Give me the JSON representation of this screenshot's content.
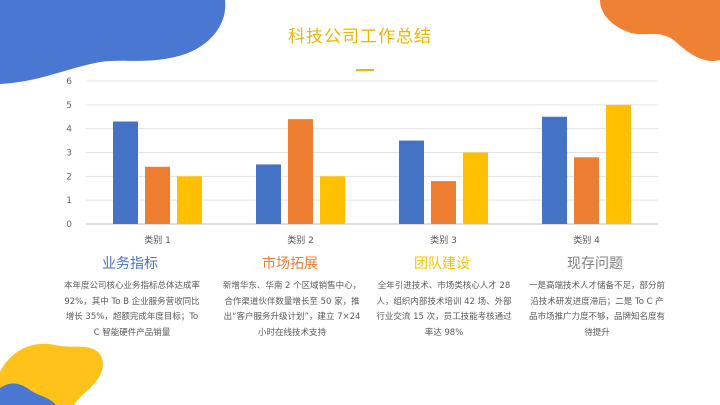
{
  "page": {
    "title": "科技公司工作总结"
  },
  "colors": {
    "blue": "#4472c4",
    "orange": "#ed7d31",
    "yellow": "#ffc000",
    "accent": "#f0b400",
    "grey_title": "#7f7f7f"
  },
  "chart_data": {
    "type": "bar",
    "categories": [
      "类别 1",
      "类别 2",
      "类别 3",
      "类别 4"
    ],
    "series": [
      {
        "values": [
          4.3,
          2.5,
          3.5,
          4.5
        ]
      },
      {
        "values": [
          2.4,
          4.4,
          1.8,
          2.8
        ]
      },
      {
        "values": [
          2.0,
          2.0,
          3.0,
          5.0
        ]
      }
    ],
    "ylim": [
      0,
      6
    ],
    "yticks": [
      0,
      1,
      2,
      3,
      4,
      5,
      6
    ],
    "grid": true
  },
  "sections": [
    {
      "title": "业务指标",
      "text": "本年度公司核心业务指标总体达成率 92%，其中 To B 企业服务营收同比增长 35%，超额完成年度目标；To C 智能硬件产品销量"
    },
    {
      "title": "市场拓展",
      "text": "新增华东、华南 2 个区域销售中心，合作渠道伙伴数量增长至 50 家，推出“客户服务升级计划”，建立 7×24 小时在线技术支持"
    },
    {
      "title": "团队建设",
      "text": "全年引进技术、市场类核心人才 28 人，组织内部技术培训 42 场、外部行业交流 15 次，员工技能考核通过率达 98%"
    },
    {
      "title": "现存问题",
      "text": "一是高端技术人才储备不足，部分前沿技术研发进度滞后；二是 To C 产品市场推广力度不够，品牌知名度有待提升"
    }
  ]
}
